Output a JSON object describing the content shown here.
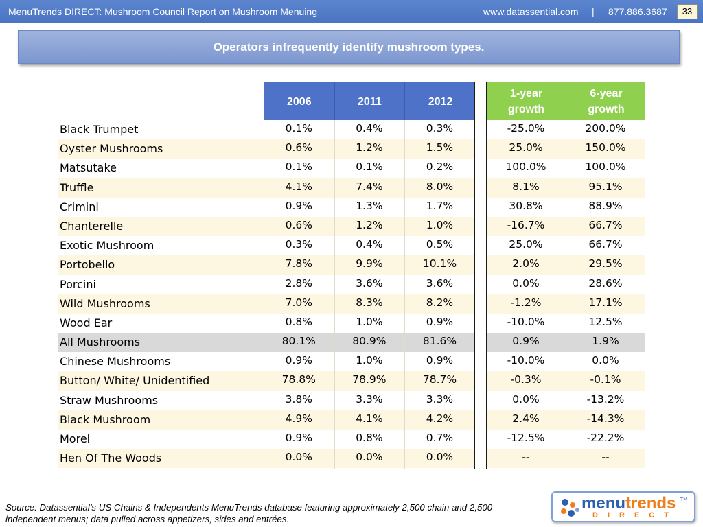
{
  "header": {
    "title": "MenuTrends DIRECT: Mushroom Council Report on Mushroom Menuing",
    "website": "www.datassential.com",
    "separator": "|",
    "phone": "877.886.3687",
    "page_number": "33"
  },
  "banner": {
    "headline": "Operators infrequently identify mushroom types."
  },
  "table": {
    "year_columns": [
      "2006",
      "2011",
      "2012"
    ],
    "growth_columns": [
      "1-year growth",
      "6-year growth"
    ],
    "rows": [
      {
        "name": "Black Trumpet",
        "y2006": "0.1%",
        "y2011": "0.4%",
        "y2012": "0.3%",
        "g1": "-25.0%",
        "g6": "200.0%"
      },
      {
        "name": "Oyster Mushrooms",
        "y2006": "0.6%",
        "y2011": "1.2%",
        "y2012": "1.5%",
        "g1": "25.0%",
        "g6": "150.0%"
      },
      {
        "name": "Matsutake",
        "y2006": "0.1%",
        "y2011": "0.1%",
        "y2012": "0.2%",
        "g1": "100.0%",
        "g6": "100.0%"
      },
      {
        "name": "Truffle",
        "y2006": "4.1%",
        "y2011": "7.4%",
        "y2012": "8.0%",
        "g1": "8.1%",
        "g6": "95.1%"
      },
      {
        "name": "Crimini",
        "y2006": "0.9%",
        "y2011": "1.3%",
        "y2012": "1.7%",
        "g1": "30.8%",
        "g6": "88.9%"
      },
      {
        "name": "Chanterelle",
        "y2006": "0.6%",
        "y2011": "1.2%",
        "y2012": "1.0%",
        "g1": "-16.7%",
        "g6": "66.7%"
      },
      {
        "name": "Exotic Mushroom",
        "y2006": "0.3%",
        "y2011": "0.4%",
        "y2012": "0.5%",
        "g1": "25.0%",
        "g6": "66.7%"
      },
      {
        "name": "Portobello",
        "y2006": "7.8%",
        "y2011": "9.9%",
        "y2012": "10.1%",
        "g1": "2.0%",
        "g6": "29.5%"
      },
      {
        "name": "Porcini",
        "y2006": "2.8%",
        "y2011": "3.6%",
        "y2012": "3.6%",
        "g1": "0.0%",
        "g6": "28.6%"
      },
      {
        "name": "Wild Mushrooms",
        "y2006": "7.0%",
        "y2011": "8.3%",
        "y2012": "8.2%",
        "g1": "-1.2%",
        "g6": "17.1%"
      },
      {
        "name": "Wood Ear",
        "y2006": "0.8%",
        "y2011": "1.0%",
        "y2012": "0.9%",
        "g1": "-10.0%",
        "g6": "12.5%"
      },
      {
        "name": "All Mushrooms",
        "y2006": "80.1%",
        "y2011": "80.9%",
        "y2012": "81.6%",
        "g1": "0.9%",
        "g6": "1.9%"
      },
      {
        "name": "Chinese Mushrooms",
        "y2006": "0.9%",
        "y2011": "1.0%",
        "y2012": "0.9%",
        "g1": "-10.0%",
        "g6": "0.0%"
      },
      {
        "name": "Button/ White/ Unidentified",
        "y2006": "78.8%",
        "y2011": "78.9%",
        "y2012": "78.7%",
        "g1": "-0.3%",
        "g6": "-0.1%"
      },
      {
        "name": "Straw Mushrooms",
        "y2006": "3.8%",
        "y2011": "3.3%",
        "y2012": "3.3%",
        "g1": "0.0%",
        "g6": "-13.2%"
      },
      {
        "name": "Black Mushroom",
        "y2006": "4.9%",
        "y2011": "4.1%",
        "y2012": "4.2%",
        "g1": "2.4%",
        "g6": "-14.3%"
      },
      {
        "name": "Morel",
        "y2006": "0.9%",
        "y2011": "0.8%",
        "y2012": "0.7%",
        "g1": "-12.5%",
        "g6": "-22.2%"
      },
      {
        "name": "Hen Of The Woods",
        "y2006": "0.0%",
        "y2011": "0.0%",
        "y2012": "0.0%",
        "g1": "--",
        "g6": "--"
      }
    ]
  },
  "footer": {
    "source": "Source: Datassential’s US Chains & Independents MenuTrends database featuring approximately 2,500 chain and 2,500 independent menus; data pulled across appetizers, sides and entrées.",
    "logo_word_a": "menu",
    "logo_word_b": "trends",
    "logo_sub": "DIRECT",
    "logo_tm": "TM"
  },
  "colors": {
    "header_bar": "#4a74c2",
    "year_header": "#4f72c9",
    "growth_header": "#8fd14f",
    "row_shade": "#fdf7e2",
    "total_row": "#d9d9d9",
    "logo_blue": "#2c5fae",
    "logo_orange": "#ef7d1a"
  }
}
